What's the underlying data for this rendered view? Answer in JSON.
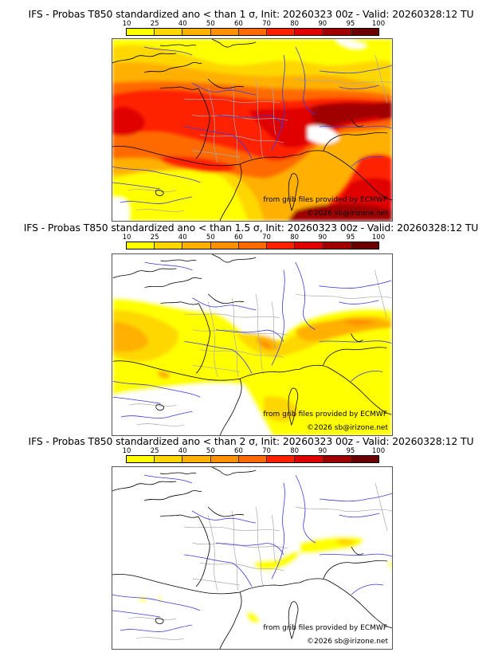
{
  "panels": [
    {
      "title": "IFS - Probas T850  standardized ano < than 1 σ, Init: 20260323 00z - Valid: 20260328:12 TU",
      "threshold_sigma": 1,
      "credit_source": "from grib files provided by ECMWF",
      "credit_copyright": "©2026 sb@irizone.net"
    },
    {
      "title": "IFS - Probas T850  standardized ano < than 1.5 σ, Init: 20260323 00z - Valid: 20260328:12 TU",
      "threshold_sigma": 1.5,
      "credit_source": "from grib files provided by ECMWF",
      "credit_copyright": "©2026 sb@irizone.net"
    },
    {
      "title": "IFS - Probas T850  standardized ano < than 2 σ, Init: 20260323 00z - Valid: 20260328:12 TU",
      "threshold_sigma": 2,
      "credit_source": "from grib files provided by ECMWF",
      "credit_copyright": "©2026 sb@irizone.net"
    }
  ],
  "colorbar": {
    "ticks": [
      "10",
      "25",
      "40",
      "50",
      "60",
      "70",
      "80",
      "90",
      "95",
      "100"
    ],
    "colors": [
      "#ffff00",
      "#ffd700",
      "#ffb000",
      "#ff9000",
      "#ff6a00",
      "#ff2000",
      "#e00000",
      "#a00000",
      "#6a0000"
    ]
  },
  "style_colors": {
    "coastline": "#000000",
    "rivers": "#3a3adf",
    "admin_boundaries": "#aaaaaa"
  }
}
